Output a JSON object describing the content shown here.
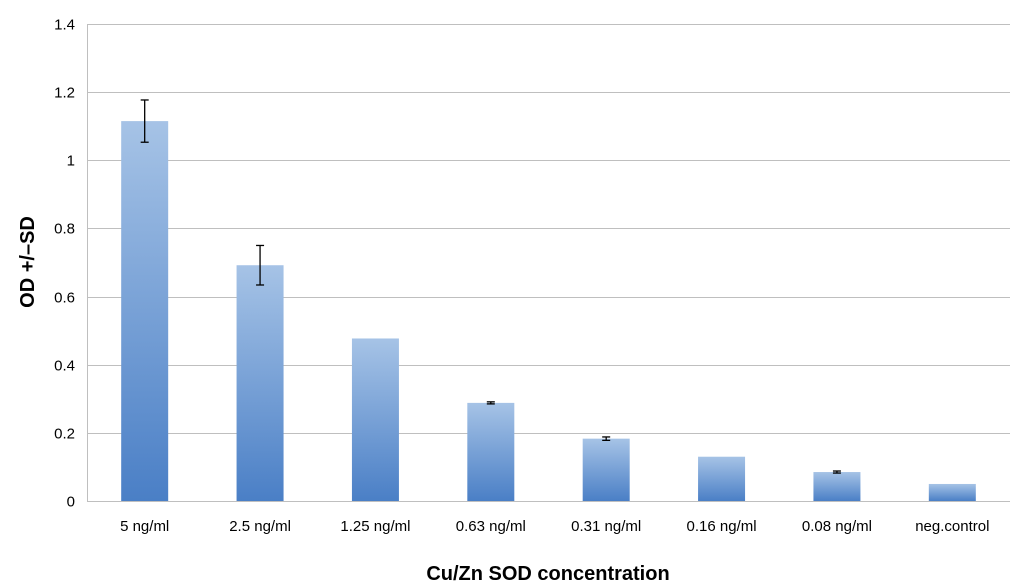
{
  "chart_data": {
    "type": "bar",
    "title": "",
    "xlabel": "Cu/Zn SOD concentration",
    "ylabel": "OD +/–SD",
    "ylim": [
      0,
      1.4
    ],
    "yticks": [
      0,
      0.2,
      0.4,
      0.6,
      0.8,
      1,
      1.2,
      1.4
    ],
    "yticks_labels": [
      "0",
      "0.2",
      "0.4",
      "0.6",
      "0.8",
      "1",
      "1.2",
      "1.4"
    ],
    "grid": true,
    "categories": [
      "5 ng/ml",
      "2.5 ng/ml",
      "1.25 ng/ml",
      "0.63 ng/ml",
      "0.31 ng/ml",
      "0.16 ng/ml",
      "0.08 ng/ml",
      "neg.control"
    ],
    "series": [
      {
        "values": [
          1.115,
          0.692,
          0.477,
          0.288,
          0.183,
          0.13,
          0.085,
          0.05
        ],
        "error": [
          0.062,
          0.058,
          0,
          0.003,
          0.005,
          0,
          0.003,
          0
        ]
      }
    ],
    "colors": {
      "bar_top": "#a6c3e6",
      "bar_bottom": "#4a7fc6"
    }
  }
}
